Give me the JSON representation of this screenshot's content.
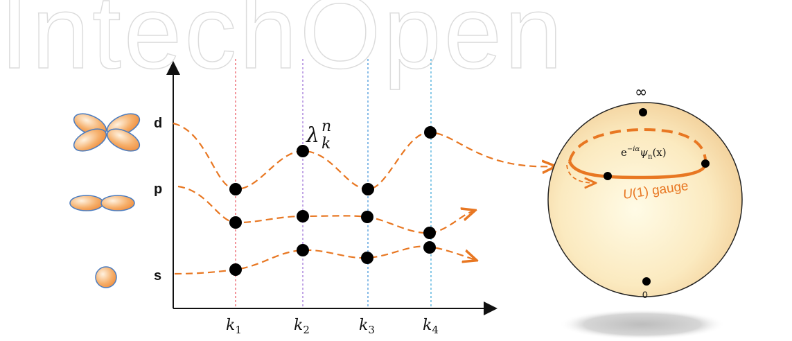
{
  "watermark": "IntechOpen",
  "orbitals": {
    "d": "d",
    "p": "p",
    "s": "s"
  },
  "k_labels": [
    {
      "base": "k",
      "sub": "1"
    },
    {
      "base": "k",
      "sub": "2"
    },
    {
      "base": "k",
      "sub": "3"
    },
    {
      "base": "k",
      "sub": "4"
    }
  ],
  "eigen_label": {
    "base": "λ",
    "sup": "n",
    "sub": "k"
  },
  "sphere": {
    "top_label": "∞",
    "bottom_label": "0",
    "wavefunction": {
      "prefix": "e",
      "exponent": "−iα",
      "psi": "ψ",
      "psi_sub": "n",
      "arg": "(x)"
    },
    "gauge_label": {
      "u": "U",
      "rest": "(1) gauge"
    }
  },
  "colors": {
    "curve": "#e87722",
    "k1_line": "#e8505b",
    "k2_line": "#9a6cd6",
    "k3_line": "#3a8fd8",
    "k4_line": "#3aa6d8",
    "orbital_fill": "#f4a35e",
    "orbital_edge": "#4a7cc0"
  }
}
